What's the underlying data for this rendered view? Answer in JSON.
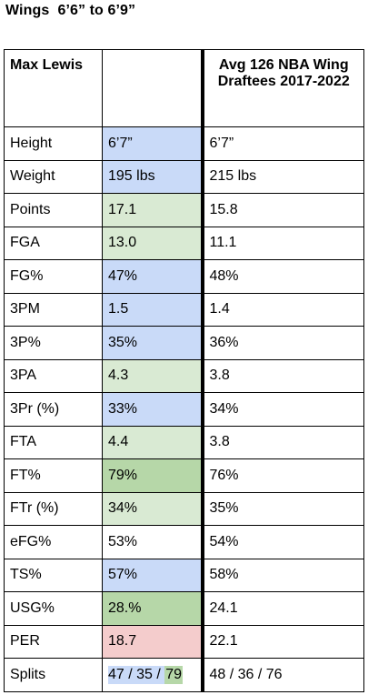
{
  "title": "Wings  6’6” to 6’9”",
  "table": {
    "headers": [
      "Max Lewis",
      "",
      "Avg 126 NBA Wing Draftees 2017-2022"
    ],
    "rows": [
      {
        "stat": "Height",
        "player": "6’7”",
        "avg": "6’7”",
        "color": "blue"
      },
      {
        "stat": "Weight",
        "player": "195 lbs",
        "avg": "215 lbs",
        "color": "blue"
      },
      {
        "stat": "Points",
        "player": "17.1",
        "avg": "15.8",
        "color": "lgreen"
      },
      {
        "stat": "FGA",
        "player": "13.0",
        "avg": "11.1",
        "color": "lgreen"
      },
      {
        "stat": "FG%",
        "player": "47%",
        "avg": "48%",
        "color": "blue"
      },
      {
        "stat": "3PM",
        "player": "1.5",
        "avg": "1.4",
        "color": "blue"
      },
      {
        "stat": "3P%",
        "player": "35%",
        "avg": "36%",
        "color": "blue"
      },
      {
        "stat": "3PA",
        "player": "4.3",
        "avg": "3.8",
        "color": "lgreen"
      },
      {
        "stat": "3Pr (%)",
        "player": "33%",
        "avg": "34%",
        "color": "blue"
      },
      {
        "stat": "FTA",
        "player": "4.4",
        "avg": "3.8",
        "color": "lgreen"
      },
      {
        "stat": "FT%",
        "player": "79%",
        "avg": "76%",
        "color": "green"
      },
      {
        "stat": "FTr (%)",
        "player": "34%",
        "avg": "35%",
        "color": "lgreen"
      },
      {
        "stat": "eFG%",
        "player": "53%",
        "avg": "54%",
        "color": "none"
      },
      {
        "stat": "TS%",
        "player": "57%",
        "avg": "58%",
        "color": "blue"
      },
      {
        "stat": "USG%",
        "player": "28.%",
        "avg": "24.1",
        "color": "green"
      },
      {
        "stat": "PER",
        "player": "18.7",
        "avg": "22.1",
        "color": "pink"
      }
    ],
    "splits": {
      "stat": "Splits",
      "player_parts": [
        "47",
        " / ",
        "35",
        " / ",
        "79"
      ],
      "avg": "48 / 36 / 76"
    }
  },
  "colors": {
    "blue": "#c9daf8",
    "lgreen": "#d9ead3",
    "green": "#b6d7a8",
    "pink": "#f4cccc"
  }
}
